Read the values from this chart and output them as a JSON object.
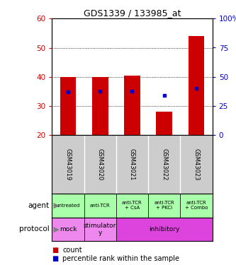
{
  "title": "GDS1339 / 133985_at",
  "samples": [
    "GSM43019",
    "GSM43020",
    "GSM43021",
    "GSM43022",
    "GSM43023"
  ],
  "count_values": [
    40.0,
    40.0,
    40.5,
    28.0,
    54.0
  ],
  "percentile_values": [
    37.0,
    37.5,
    38.0,
    34.0,
    40.0
  ],
  "ylim_left": [
    20,
    60
  ],
  "ylim_right": [
    0,
    100
  ],
  "yticks_left": [
    20,
    30,
    40,
    50,
    60
  ],
  "yticks_right": [
    0,
    25,
    50,
    75,
    100
  ],
  "ytick_labels_right": [
    "0",
    "25",
    "50",
    "75",
    "100%"
  ],
  "bar_color": "#cc0000",
  "dot_color": "#0000cc",
  "bar_bottom": 20,
  "agent_labels": [
    "untreated",
    "anti-TCR",
    "anti-TCR\n+ CsA",
    "anti-TCR\n+ PKCi",
    "anti-TCR\n+ Combo"
  ],
  "sample_box_color": "#cccccc",
  "agent_color": "#aaffaa",
  "protocol_mock_color": "#ee88ee",
  "protocol_stimulatory_color": "#ee88ee",
  "protocol_inhibitory_color": "#dd44dd",
  "legend_count_color": "#cc0000",
  "legend_dot_color": "#0000cc",
  "legend_count_label": "count",
  "legend_dot_label": "percentile rank within the sample",
  "left_axis_color": "#cc0000",
  "right_axis_color": "#0000cc"
}
